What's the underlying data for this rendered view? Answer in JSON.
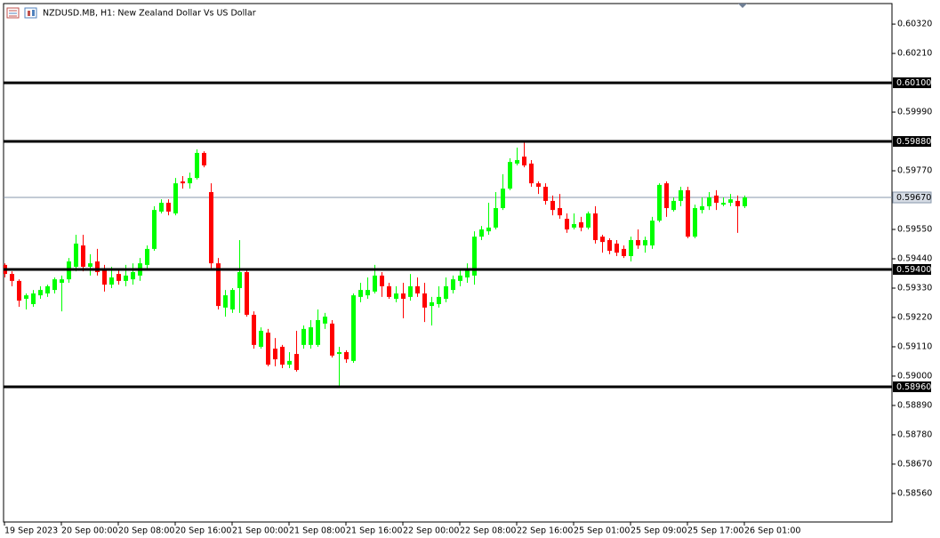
{
  "chart_data": {
    "type": "candlestick",
    "title": "NZDUSD.MB, H1:  New Zealand Dollar Vs US Dollar",
    "categories": [
      "19 Sep 2023",
      null,
      null,
      null,
      null,
      null,
      null,
      null,
      "20 Sep 00:00",
      null,
      null,
      null,
      null,
      null,
      null,
      null,
      "20 Sep 08:00",
      null,
      null,
      null,
      null,
      null,
      null,
      null,
      "20 Sep 16:00",
      null,
      null,
      null,
      null,
      null,
      null,
      null,
      "21 Sep 00:00",
      null,
      null,
      null,
      null,
      null,
      null,
      null,
      "21 Sep 08:00",
      null,
      null,
      null,
      null,
      null,
      null,
      null,
      "21 Sep 16:00",
      null,
      null,
      null,
      null,
      null,
      null,
      null,
      "22 Sep 00:00",
      null,
      null,
      null,
      null,
      null,
      null,
      null,
      "22 Sep 08:00",
      null,
      null,
      null,
      null,
      null,
      null,
      null,
      "22 Sep 16:00",
      null,
      null,
      null,
      null,
      null,
      null,
      null,
      "25 Sep 01:00",
      null,
      null,
      null,
      null,
      null,
      null,
      null,
      "25 Sep 09:00",
      null,
      null,
      null,
      null,
      null,
      null,
      null,
      "25 Sep 17:00",
      null,
      null,
      null,
      null,
      null,
      null,
      null,
      "26 Sep 01:00"
    ],
    "open": [
      0.59417,
      0.59383,
      0.59357,
      0.5929,
      0.5927,
      0.59303,
      0.5931,
      0.59323,
      0.5935,
      0.59363,
      0.5941,
      0.5949,
      0.5941,
      0.5943,
      0.59403,
      0.59343,
      0.59383,
      0.59357,
      0.59363,
      0.59377,
      0.59417,
      0.59477,
      0.59617,
      0.5965,
      0.5961,
      0.5973,
      0.59723,
      0.59743,
      0.59837,
      0.5969,
      0.59423,
      0.59257,
      0.5925,
      0.5933,
      0.5939,
      0.5923,
      0.5911,
      0.59163,
      0.59103,
      0.5911,
      0.59043,
      0.59083,
      0.59117,
      0.59117,
      0.59117,
      0.59197,
      0.59197,
      0.59083,
      0.5909,
      0.59057,
      0.59297,
      0.59303,
      0.59317,
      0.59377,
      0.59337,
      0.5929,
      0.5931,
      0.59297,
      0.59337,
      0.5931,
      0.59263,
      0.5927,
      0.5929,
      0.59323,
      0.59357,
      0.5937,
      0.59377,
      0.59523,
      0.59543,
      0.59557,
      0.5963,
      0.59703,
      0.59797,
      0.59823,
      0.59797,
      0.59723,
      0.5971,
      0.59657,
      0.5963,
      0.5959,
      0.59557,
      0.59577,
      0.59557,
      0.5961,
      0.59523,
      0.5951,
      0.59497,
      0.59477,
      0.5945,
      0.5951,
      0.5949,
      0.5949,
      0.59583,
      0.59723,
      0.59623,
      0.59657,
      0.59697,
      0.59523,
      0.59623,
      0.59637,
      0.59677,
      0.59643,
      0.5965,
      0.59657,
      0.59637
    ],
    "high": [
      0.59423,
      0.59393,
      0.59363,
      0.5931,
      0.59323,
      0.59337,
      0.59343,
      0.5937,
      0.59377,
      0.59443,
      0.5953,
      0.5953,
      0.59457,
      0.59477,
      0.59417,
      0.5941,
      0.59397,
      0.59417,
      0.59423,
      0.59443,
      0.5949,
      0.59637,
      0.59663,
      0.59663,
      0.59743,
      0.5975,
      0.59763,
      0.5985,
      0.59843,
      0.59723,
      0.59443,
      0.59323,
      0.5933,
      0.5951,
      0.59403,
      0.59243,
      0.59183,
      0.59177,
      0.59143,
      0.59117,
      0.5909,
      0.5917,
      0.5919,
      0.5921,
      0.5925,
      0.59237,
      0.5921,
      0.5911,
      0.59097,
      0.5931,
      0.5935,
      0.5937,
      0.59417,
      0.5939,
      0.5935,
      0.59337,
      0.5935,
      0.59383,
      0.5937,
      0.5935,
      0.59297,
      0.59337,
      0.5937,
      0.59377,
      0.59403,
      0.59423,
      0.59543,
      0.59563,
      0.5965,
      0.5969,
      0.59757,
      0.59817,
      0.59857,
      0.59883,
      0.5981,
      0.5973,
      0.59723,
      0.59677,
      0.59683,
      0.5961,
      0.5961,
      0.59597,
      0.59617,
      0.59637,
      0.5953,
      0.59517,
      0.5951,
      0.5949,
      0.59523,
      0.5955,
      0.59523,
      0.59597,
      0.59723,
      0.5973,
      0.5967,
      0.5971,
      0.5971,
      0.59643,
      0.5967,
      0.5969,
      0.59697,
      0.5967,
      0.59683,
      0.59677,
      0.59677
    ],
    "low": [
      0.5937,
      0.59337,
      0.5926,
      0.5925,
      0.5926,
      0.5929,
      0.59297,
      0.5931,
      0.59243,
      0.5935,
      0.59393,
      0.59393,
      0.59377,
      0.59377,
      0.59317,
      0.5933,
      0.59343,
      0.59337,
      0.59343,
      0.59357,
      0.59403,
      0.5947,
      0.5961,
      0.59603,
      0.59603,
      0.59703,
      0.59703,
      0.59737,
      0.59783,
      0.59403,
      0.5925,
      0.59223,
      0.59237,
      0.59237,
      0.59223,
      0.59103,
      0.59103,
      0.59037,
      0.59037,
      0.5903,
      0.5903,
      0.59017,
      0.59103,
      0.59103,
      0.5911,
      0.59177,
      0.5907,
      0.58957,
      0.5905,
      0.5905,
      0.59277,
      0.5929,
      0.5931,
      0.59297,
      0.5929,
      0.59277,
      0.59217,
      0.59283,
      0.59297,
      0.59203,
      0.5919,
      0.59257,
      0.59277,
      0.5931,
      0.59337,
      0.5935,
      0.59343,
      0.5951,
      0.5953,
      0.5955,
      0.59623,
      0.59697,
      0.5979,
      0.59783,
      0.5971,
      0.59683,
      0.59643,
      0.59603,
      0.5959,
      0.59537,
      0.5955,
      0.59543,
      0.5955,
      0.59497,
      0.59463,
      0.59457,
      0.5945,
      0.59443,
      0.5943,
      0.59477,
      0.59463,
      0.59477,
      0.59577,
      0.59597,
      0.59617,
      0.59637,
      0.59517,
      0.59517,
      0.5961,
      0.59623,
      0.59623,
      0.59637,
      0.59637,
      0.59537,
      0.5963
    ],
    "close": [
      0.59383,
      0.59357,
      0.59283,
      0.59303,
      0.5931,
      0.59323,
      0.59337,
      0.59363,
      0.59363,
      0.5943,
      0.59497,
      0.5941,
      0.59423,
      0.5939,
      0.59343,
      0.5937,
      0.59357,
      0.59377,
      0.5939,
      0.59423,
      0.59477,
      0.59623,
      0.5965,
      0.59617,
      0.59723,
      0.59723,
      0.59743,
      0.59837,
      0.5979,
      0.59423,
      0.59263,
      0.59303,
      0.59323,
      0.5939,
      0.5923,
      0.59117,
      0.5917,
      0.59043,
      0.59063,
      0.59043,
      0.59057,
      0.59023,
      0.59177,
      0.59183,
      0.5921,
      0.59223,
      0.59077,
      0.5909,
      0.59063,
      0.59303,
      0.59323,
      0.59323,
      0.59377,
      0.59337,
      0.59297,
      0.5931,
      0.5929,
      0.59337,
      0.5931,
      0.59257,
      0.59277,
      0.59297,
      0.59337,
      0.59363,
      0.59377,
      0.59403,
      0.59523,
      0.5955,
      0.59557,
      0.5963,
      0.59703,
      0.59803,
      0.5981,
      0.5979,
      0.59723,
      0.5971,
      0.59657,
      0.59623,
      0.59603,
      0.5955,
      0.5957,
      0.59557,
      0.5961,
      0.5951,
      0.59503,
      0.5947,
      0.59463,
      0.5945,
      0.5951,
      0.5949,
      0.5951,
      0.59583,
      0.59717,
      0.5963,
      0.59657,
      0.59697,
      0.59523,
      0.5963,
      0.59637,
      0.5967,
      0.5965,
      0.5965,
      0.59663,
      0.59637,
      0.5967
    ],
    "up_color": "#00ff00",
    "down_color": "#ff0000",
    "ylim": [
      0.58453,
      0.60397
    ],
    "yticks": [
      {
        "value": 0.6032,
        "label": "0.60320"
      },
      {
        "value": 0.6021,
        "label": "0.60210"
      },
      {
        "value": 0.5999,
        "label": "0.59990"
      },
      {
        "value": 0.5977,
        "label": "0.59770"
      },
      {
        "value": 0.5955,
        "label": "0.59550"
      },
      {
        "value": 0.5944,
        "label": "0.59440"
      },
      {
        "value": 0.5933,
        "label": "0.59330"
      },
      {
        "value": 0.5922,
        "label": "0.59220"
      },
      {
        "value": 0.5911,
        "label": "0.59110"
      },
      {
        "value": 0.59,
        "label": "0.59000"
      },
      {
        "value": 0.5889,
        "label": "0.58890"
      },
      {
        "value": 0.5878,
        "label": "0.58780"
      },
      {
        "value": 0.5867,
        "label": "0.58670"
      },
      {
        "value": 0.5856,
        "label": "0.58560"
      }
    ],
    "levels": [
      {
        "value": 0.601,
        "label": "0.60100"
      },
      {
        "value": 0.5988,
        "label": "0.59880"
      },
      {
        "value": 0.594,
        "label": "0.59400"
      },
      {
        "value": 0.5896,
        "label": "0.58960"
      }
    ],
    "level_color": "#000000",
    "current_price": {
      "value": 0.5967,
      "label": "0.59670"
    },
    "current_color": "#8797ab"
  }
}
